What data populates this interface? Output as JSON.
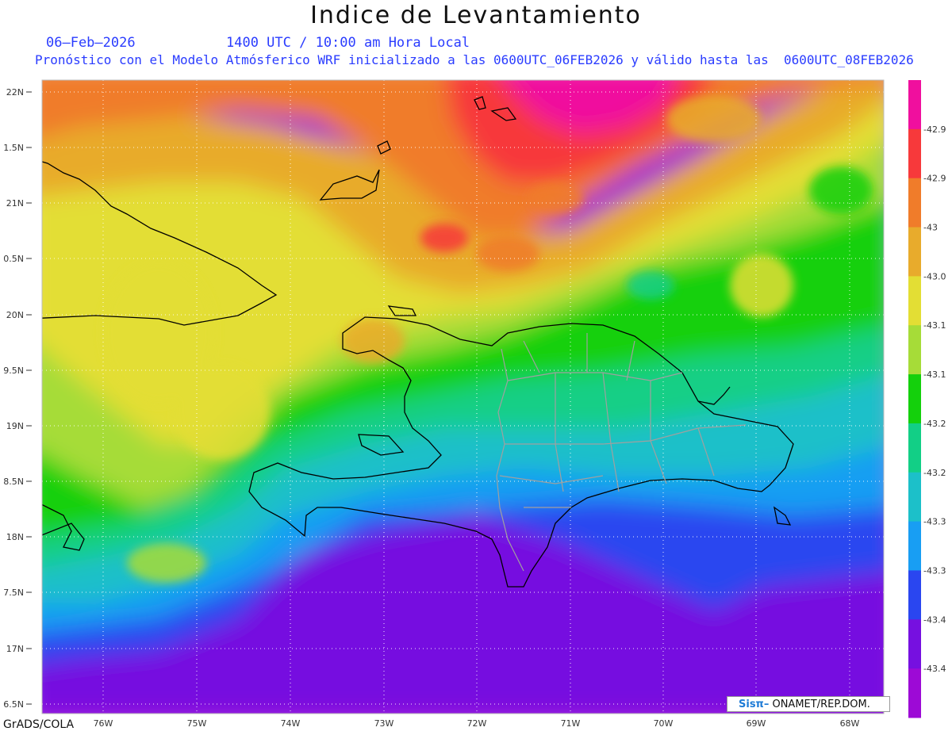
{
  "title": "Indice de Levantamiento",
  "date": "06–Feb–2026",
  "time": "1400 UTC / 10:00 am Hora Local",
  "subtitle": "Pronóstico con el Modelo Atmósferico WRF inicializado a las 0600UTC_06FEB2026 y válido hasta las  0600UTC_08FEB2026",
  "credit": "GrADS/COLA",
  "logo_text": "Sisπ–",
  "org_text": " ONAMET/REP.DOM.",
  "map": {
    "lon_labels": [
      "76W",
      "75W",
      "74W",
      "73W",
      "72W",
      "71W",
      "70W",
      "69W",
      "68W"
    ],
    "lat_labels": [
      "22N",
      "1.5N",
      "21N",
      "0.5N",
      "20N",
      "9.5N",
      "19N",
      "8.5N",
      "18N",
      "7.5N",
      "17N",
      "6.5N"
    ]
  },
  "colorbar": {
    "labels": [
      "-42.9",
      "-42.9",
      "-43",
      "-43.0",
      "-43.1",
      "-43.1",
      "-43.2",
      "-43.2",
      "-43.3",
      "-43.3",
      "-43.4",
      "-43.4"
    ],
    "colors": [
      "#f00f9e",
      "#f7393b",
      "#f07c2a",
      "#e8ab2c",
      "#e3de34",
      "#a6dc38",
      "#14d00c",
      "#12cf86",
      "#1cc0c9",
      "#189ef3",
      "#2a46f0",
      "#7610e0",
      "#9d0ad6"
    ]
  }
}
